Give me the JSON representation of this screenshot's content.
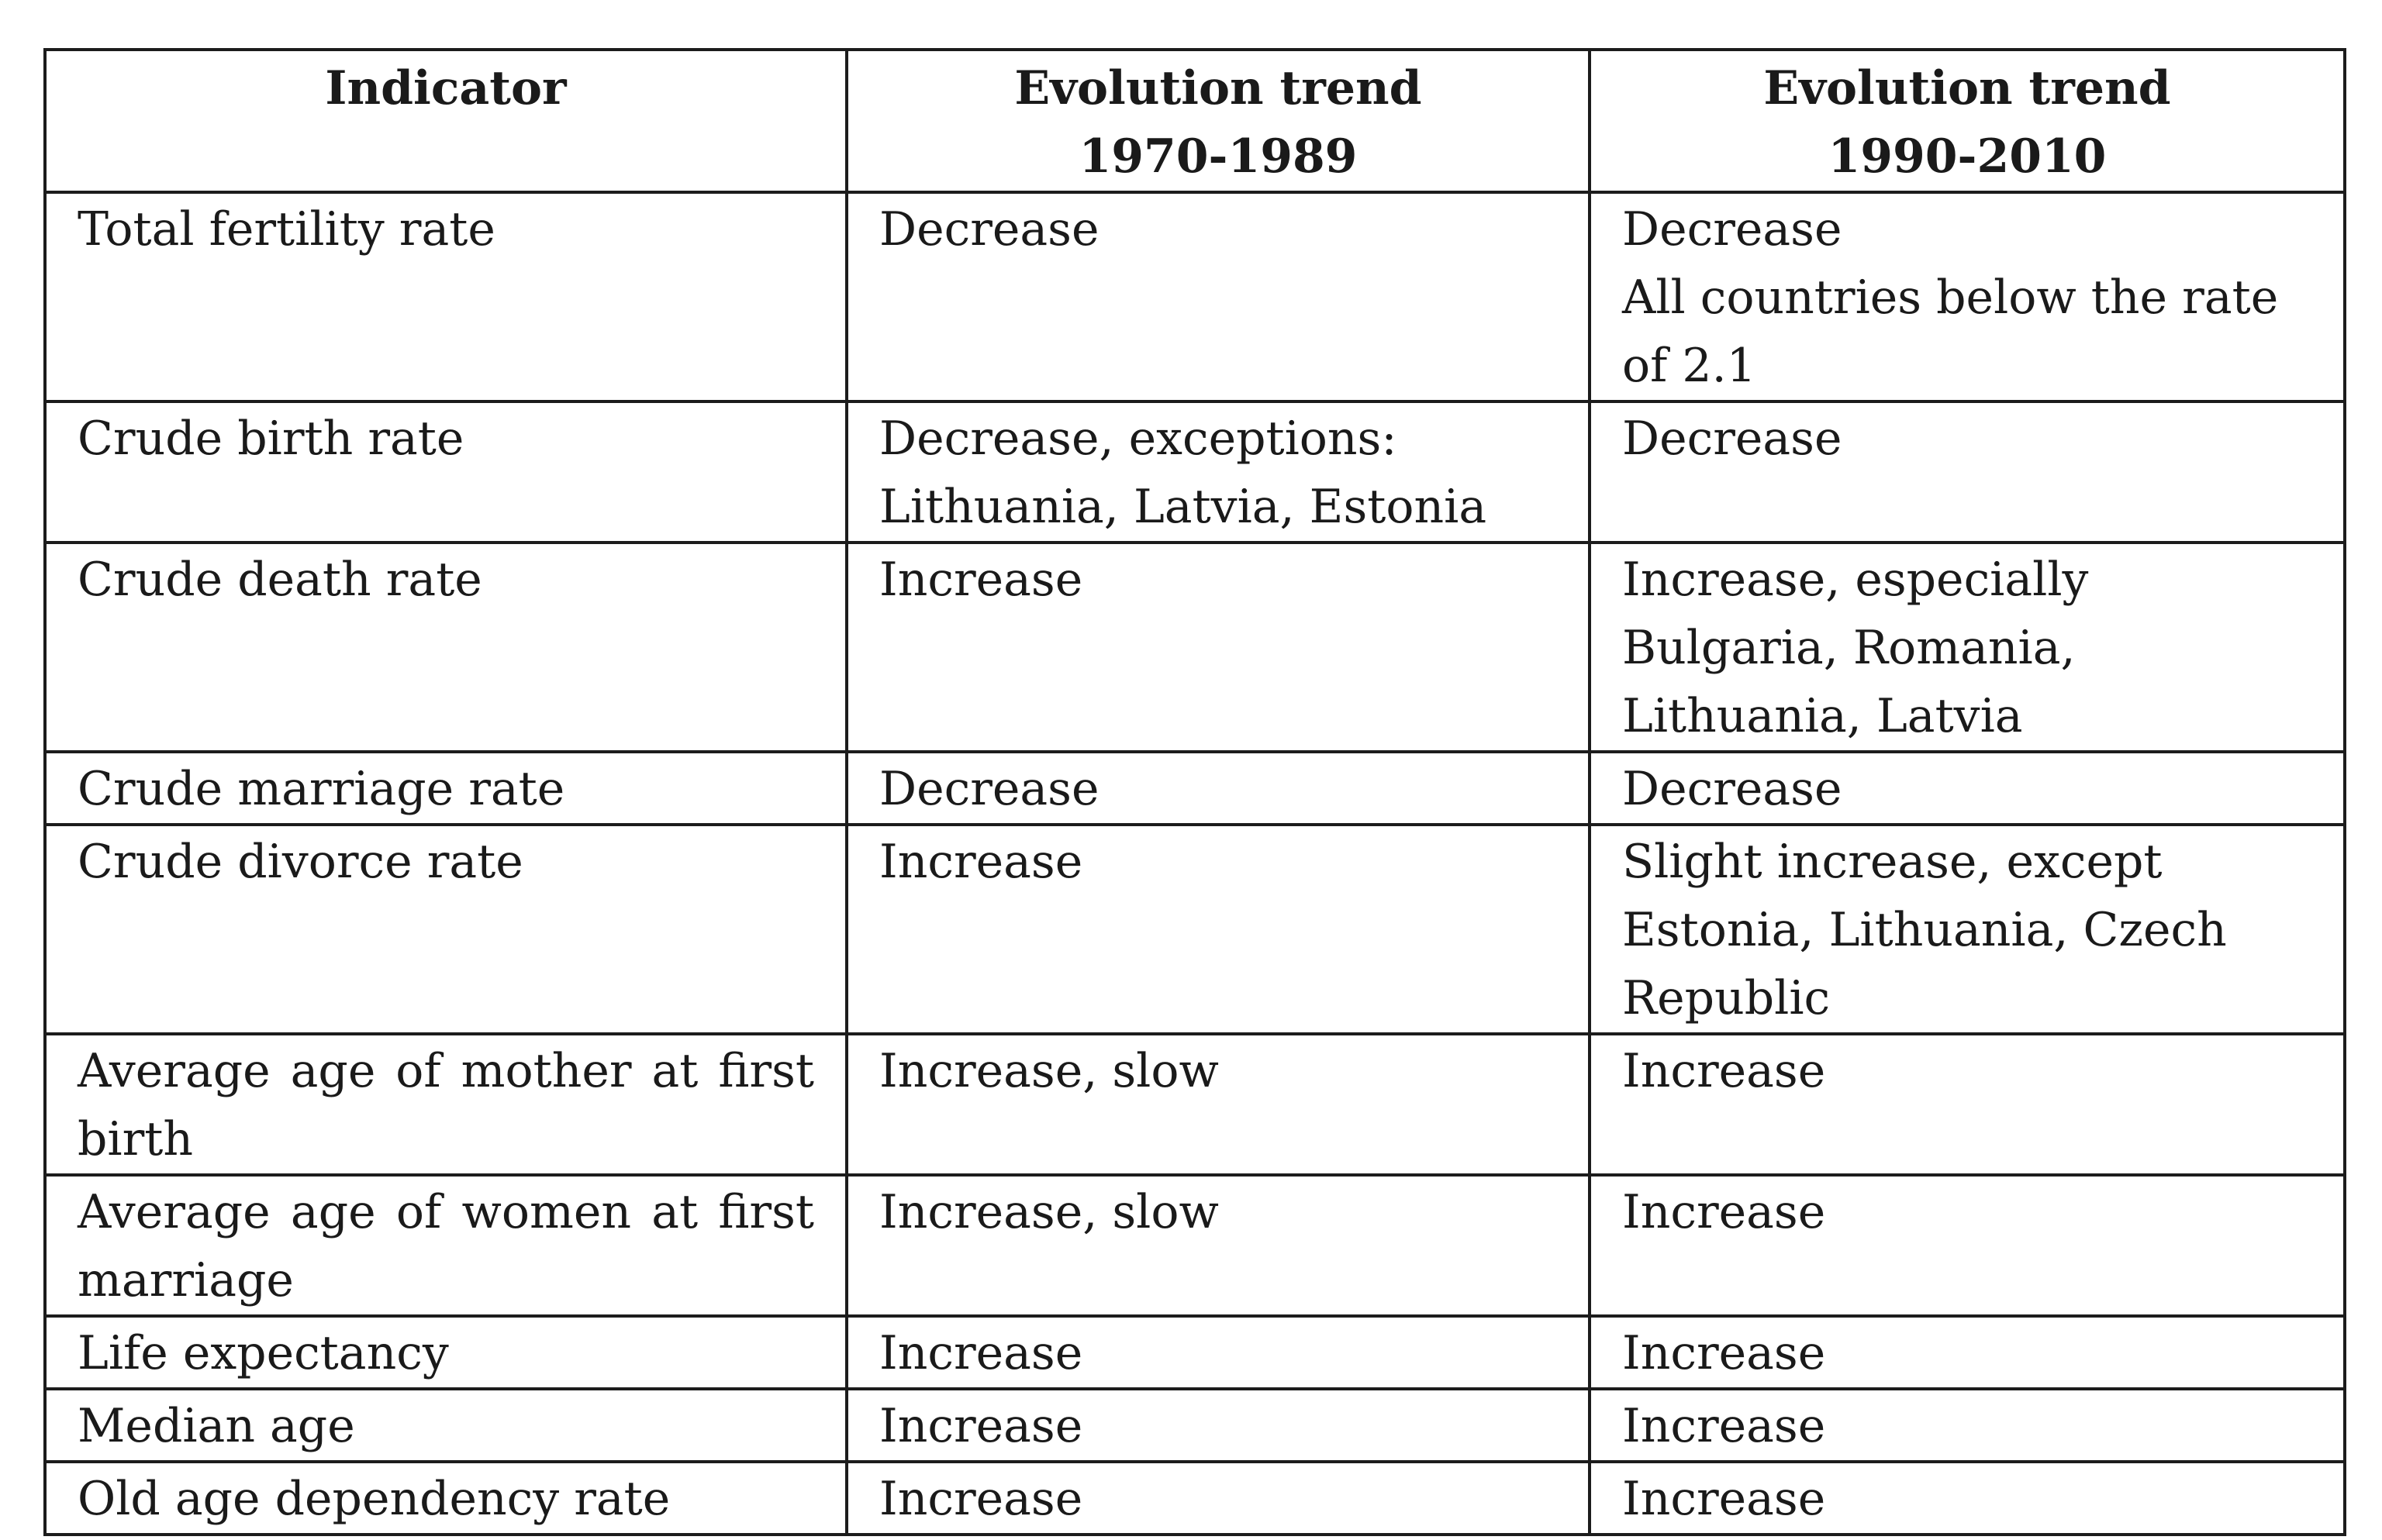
{
  "table": {
    "headers": [
      "Indicator",
      "Evolution trend 1970-1989",
      "Evolution trend 1990-2010"
    ],
    "header_lines": [
      [
        "Indicator"
      ],
      [
        "Evolution trend",
        "1970-1989"
      ],
      [
        "Evolution trend",
        "1990-2010"
      ]
    ],
    "rows": [
      {
        "indicator": "Total fertility rate",
        "trend_1970_1989": "Decrease",
        "trend_1990_2010": [
          "Decrease",
          "All countries below the rate of 2.1"
        ]
      },
      {
        "indicator": "Crude birth rate",
        "trend_1970_1989": "Decrease, exceptions: Lithuania, Latvia, Estonia",
        "trend_1990_2010": "Decrease"
      },
      {
        "indicator": "Crude death rate",
        "trend_1970_1989": "Increase",
        "trend_1990_2010": "Increase, especially Bulgaria, Romania, Lithuania, Latvia"
      },
      {
        "indicator": "Crude marriage rate",
        "trend_1970_1989": "Decrease",
        "trend_1990_2010": "Decrease"
      },
      {
        "indicator": "Crude divorce rate",
        "trend_1970_1989": "Increase",
        "trend_1990_2010": "Slight increase, except Estonia, Lithuania, Czech Republic"
      },
      {
        "indicator": "Average age of mother at first birth",
        "trend_1970_1989": "Increase, slow",
        "trend_1990_2010": "Increase"
      },
      {
        "indicator": "Average age of women at first marriage",
        "trend_1970_1989": "Increase, slow",
        "trend_1990_2010": "Increase"
      },
      {
        "indicator": "Life expectancy",
        "trend_1970_1989": "Increase",
        "trend_1990_2010": "Increase"
      },
      {
        "indicator": "Median age",
        "trend_1970_1989": "Increase",
        "trend_1990_2010": "Increase"
      },
      {
        "indicator": "Old age dependency rate",
        "trend_1970_1989": "Increase",
        "trend_1990_2010": "Increase"
      }
    ]
  }
}
